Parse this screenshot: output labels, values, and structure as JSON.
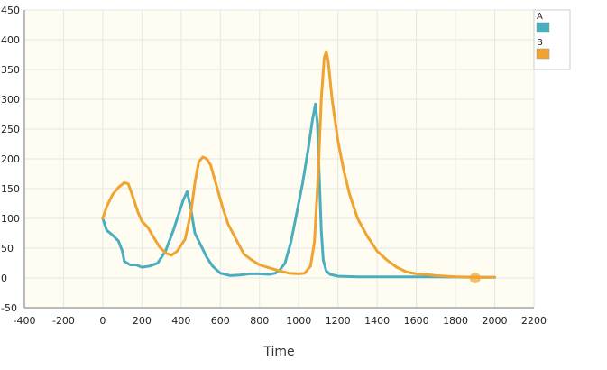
{
  "chart_data": {
    "type": "line",
    "title": "",
    "xlabel": "Time",
    "ylabel": "",
    "xlim": [
      -400,
      2200
    ],
    "ylim": [
      -50,
      450
    ],
    "x_ticks": [
      -400,
      -200,
      0,
      200,
      400,
      600,
      800,
      1000,
      1200,
      1400,
      1600,
      1800,
      2000,
      2200
    ],
    "y_ticks": [
      -50,
      0,
      50,
      100,
      150,
      200,
      250,
      300,
      350,
      400,
      450
    ],
    "grid": true,
    "legend": "right",
    "plot_background": "#fffdf1",
    "series": [
      {
        "name": "A",
        "color": "#4aaebf",
        "points": [
          [
            0,
            100
          ],
          [
            20,
            80
          ],
          [
            50,
            72
          ],
          [
            80,
            62
          ],
          [
            100,
            45
          ],
          [
            110,
            28
          ],
          [
            140,
            22
          ],
          [
            170,
            22
          ],
          [
            200,
            18
          ],
          [
            240,
            20
          ],
          [
            280,
            25
          ],
          [
            320,
            45
          ],
          [
            360,
            80
          ],
          [
            390,
            110
          ],
          [
            410,
            130
          ],
          [
            430,
            145
          ],
          [
            450,
            115
          ],
          [
            470,
            75
          ],
          [
            500,
            55
          ],
          [
            530,
            35
          ],
          [
            560,
            20
          ],
          [
            600,
            8
          ],
          [
            650,
            4
          ],
          [
            700,
            5
          ],
          [
            750,
            7
          ],
          [
            800,
            7
          ],
          [
            850,
            6
          ],
          [
            880,
            8
          ],
          [
            900,
            12
          ],
          [
            930,
            25
          ],
          [
            960,
            60
          ],
          [
            990,
            110
          ],
          [
            1020,
            160
          ],
          [
            1050,
            220
          ],
          [
            1070,
            265
          ],
          [
            1085,
            292
          ],
          [
            1095,
            260
          ],
          [
            1105,
            170
          ],
          [
            1115,
            80
          ],
          [
            1125,
            30
          ],
          [
            1140,
            12
          ],
          [
            1160,
            6
          ],
          [
            1200,
            3
          ],
          [
            1300,
            2
          ],
          [
            1500,
            2
          ],
          [
            1700,
            2
          ],
          [
            1900,
            1
          ],
          [
            2000,
            1
          ]
        ]
      },
      {
        "name": "B",
        "color": "#f0a330",
        "points": [
          [
            0,
            100
          ],
          [
            20,
            120
          ],
          [
            50,
            140
          ],
          [
            80,
            152
          ],
          [
            110,
            160
          ],
          [
            130,
            158
          ],
          [
            150,
            140
          ],
          [
            180,
            110
          ],
          [
            200,
            95
          ],
          [
            230,
            85
          ],
          [
            260,
            68
          ],
          [
            290,
            52
          ],
          [
            320,
            42
          ],
          [
            350,
            38
          ],
          [
            380,
            45
          ],
          [
            420,
            65
          ],
          [
            450,
            110
          ],
          [
            470,
            160
          ],
          [
            490,
            195
          ],
          [
            510,
            203
          ],
          [
            530,
            200
          ],
          [
            550,
            190
          ],
          [
            580,
            155
          ],
          [
            610,
            120
          ],
          [
            640,
            90
          ],
          [
            680,
            65
          ],
          [
            720,
            40
          ],
          [
            760,
            30
          ],
          [
            800,
            22
          ],
          [
            850,
            17
          ],
          [
            900,
            12
          ],
          [
            950,
            8
          ],
          [
            1000,
            7
          ],
          [
            1030,
            8
          ],
          [
            1060,
            20
          ],
          [
            1080,
            60
          ],
          [
            1100,
            180
          ],
          [
            1115,
            300
          ],
          [
            1130,
            370
          ],
          [
            1140,
            380
          ],
          [
            1150,
            365
          ],
          [
            1170,
            300
          ],
          [
            1200,
            230
          ],
          [
            1230,
            180
          ],
          [
            1260,
            140
          ],
          [
            1300,
            100
          ],
          [
            1350,
            70
          ],
          [
            1400,
            45
          ],
          [
            1450,
            30
          ],
          [
            1500,
            18
          ],
          [
            1550,
            10
          ],
          [
            1600,
            7
          ],
          [
            1650,
            6
          ],
          [
            1700,
            4
          ],
          [
            1800,
            2
          ],
          [
            1900,
            1
          ],
          [
            2000,
            1
          ]
        ]
      }
    ],
    "markers": [
      {
        "x": 1900,
        "y": 0,
        "color": "#f0a330"
      }
    ]
  }
}
